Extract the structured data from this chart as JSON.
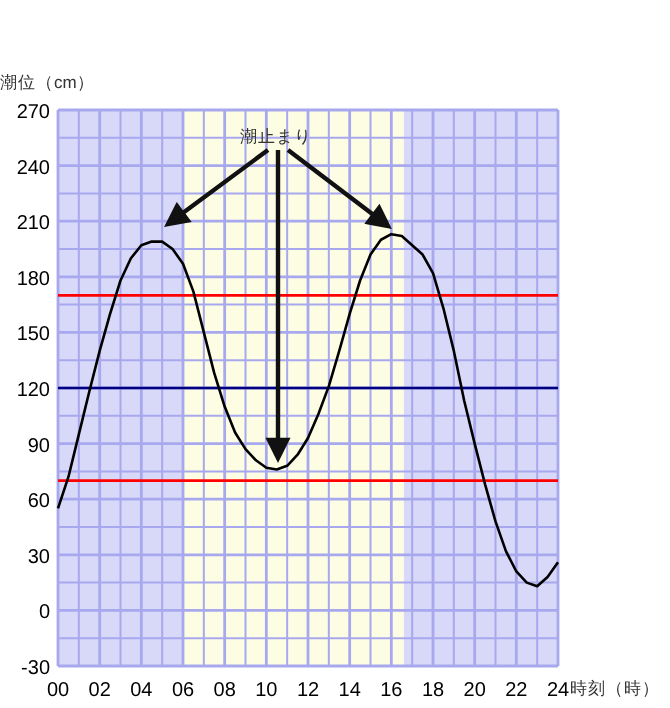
{
  "chart_data": {
    "type": "line",
    "xlabel": "時刻（時）",
    "ylabel": "潮位（cm）",
    "annotations": [
      "潮止まり"
    ],
    "xlim": [
      0,
      24
    ],
    "ylim": [
      -30,
      270
    ],
    "xticks": [
      {
        "value": 0,
        "label": "00"
      },
      {
        "value": 1,
        "label": null
      },
      {
        "value": 2,
        "label": "02"
      },
      {
        "value": 3,
        "label": null
      },
      {
        "value": 4,
        "label": "04"
      },
      {
        "value": 5,
        "label": null
      },
      {
        "value": 6,
        "label": "06"
      },
      {
        "value": 7,
        "label": null
      },
      {
        "value": 8,
        "label": "08"
      },
      {
        "value": 9,
        "label": null
      },
      {
        "value": 10,
        "label": "10"
      },
      {
        "value": 11,
        "label": null
      },
      {
        "value": 12,
        "label": "12"
      },
      {
        "value": 13,
        "label": null
      },
      {
        "value": 14,
        "label": "14"
      },
      {
        "value": 15,
        "label": null
      },
      {
        "value": 16,
        "label": "16"
      },
      {
        "value": 17,
        "label": null
      },
      {
        "value": 18,
        "label": "18"
      },
      {
        "value": 19,
        "label": null
      },
      {
        "value": 20,
        "label": "20"
      },
      {
        "value": 21,
        "label": null
      },
      {
        "value": 22,
        "label": "22"
      },
      {
        "value": 23,
        "label": null
      },
      {
        "value": 24,
        "label": "24"
      }
    ],
    "yticks": [
      -30,
      {
        "value": -15,
        "label": null
      },
      0,
      {
        "value": 15,
        "label": null
      },
      30,
      {
        "value": 45,
        "label": null
      },
      60,
      {
        "value": 75,
        "label": null
      },
      90,
      {
        "value": 105,
        "label": null
      },
      120,
      {
        "value": 135,
        "label": null
      },
      150,
      {
        "value": 165,
        "label": null
      },
      180,
      {
        "value": 195,
        "label": null
      },
      210,
      {
        "value": 225,
        "label": null
      },
      240,
      {
        "value": 255,
        "label": null
      },
      270
    ],
    "grid": true,
    "marker": "none",
    "line_style": "solid",
    "x": [
      0,
      0.5,
      1,
      1.5,
      2,
      2.5,
      3,
      3.5,
      4,
      4.5,
      5,
      5.5,
      6,
      6.5,
      7,
      7.5,
      8,
      8.5,
      9,
      9.5,
      10,
      10.5,
      11,
      11.5,
      12,
      12.5,
      13,
      13.5,
      14,
      14.5,
      15,
      15.5,
      16,
      16.5,
      17,
      17.5,
      18,
      18.5,
      19,
      19.5,
      20,
      20.5,
      21,
      21.5,
      22,
      22.5,
      23,
      23.5,
      24
    ],
    "series": [
      {
        "color": "#000000",
        "values": [
          55,
          72,
          95,
          118,
          140,
          160,
          178,
          190,
          197,
          199,
          199,
          195,
          187,
          172,
          150,
          128,
          110,
          96,
          87,
          81,
          77,
          76,
          78,
          84,
          93,
          106,
          121,
          140,
          160,
          178,
          192,
          200,
          203,
          202,
          197,
          192,
          182,
          163,
          140,
          113,
          90,
          68,
          48,
          32,
          21,
          15,
          13,
          18,
          26
        ]
      }
    ],
    "ref_lines": [
      {
        "axis": "y",
        "value": 170,
        "color": "#ff0000"
      },
      {
        "axis": "y",
        "value": 120,
        "color": "#000080"
      },
      {
        "axis": "y",
        "value": 70,
        "color": "#ff0000"
      }
    ],
    "bands": [
      {
        "axis": "x",
        "from": 0,
        "to": 6,
        "color": "#d8d8f8"
      },
      {
        "axis": "x",
        "from": 6,
        "to": 16.6,
        "color": "#fdfde4"
      },
      {
        "axis": "x",
        "from": 16.6,
        "to": 24,
        "color": "#d8d8f8"
      }
    ]
  }
}
